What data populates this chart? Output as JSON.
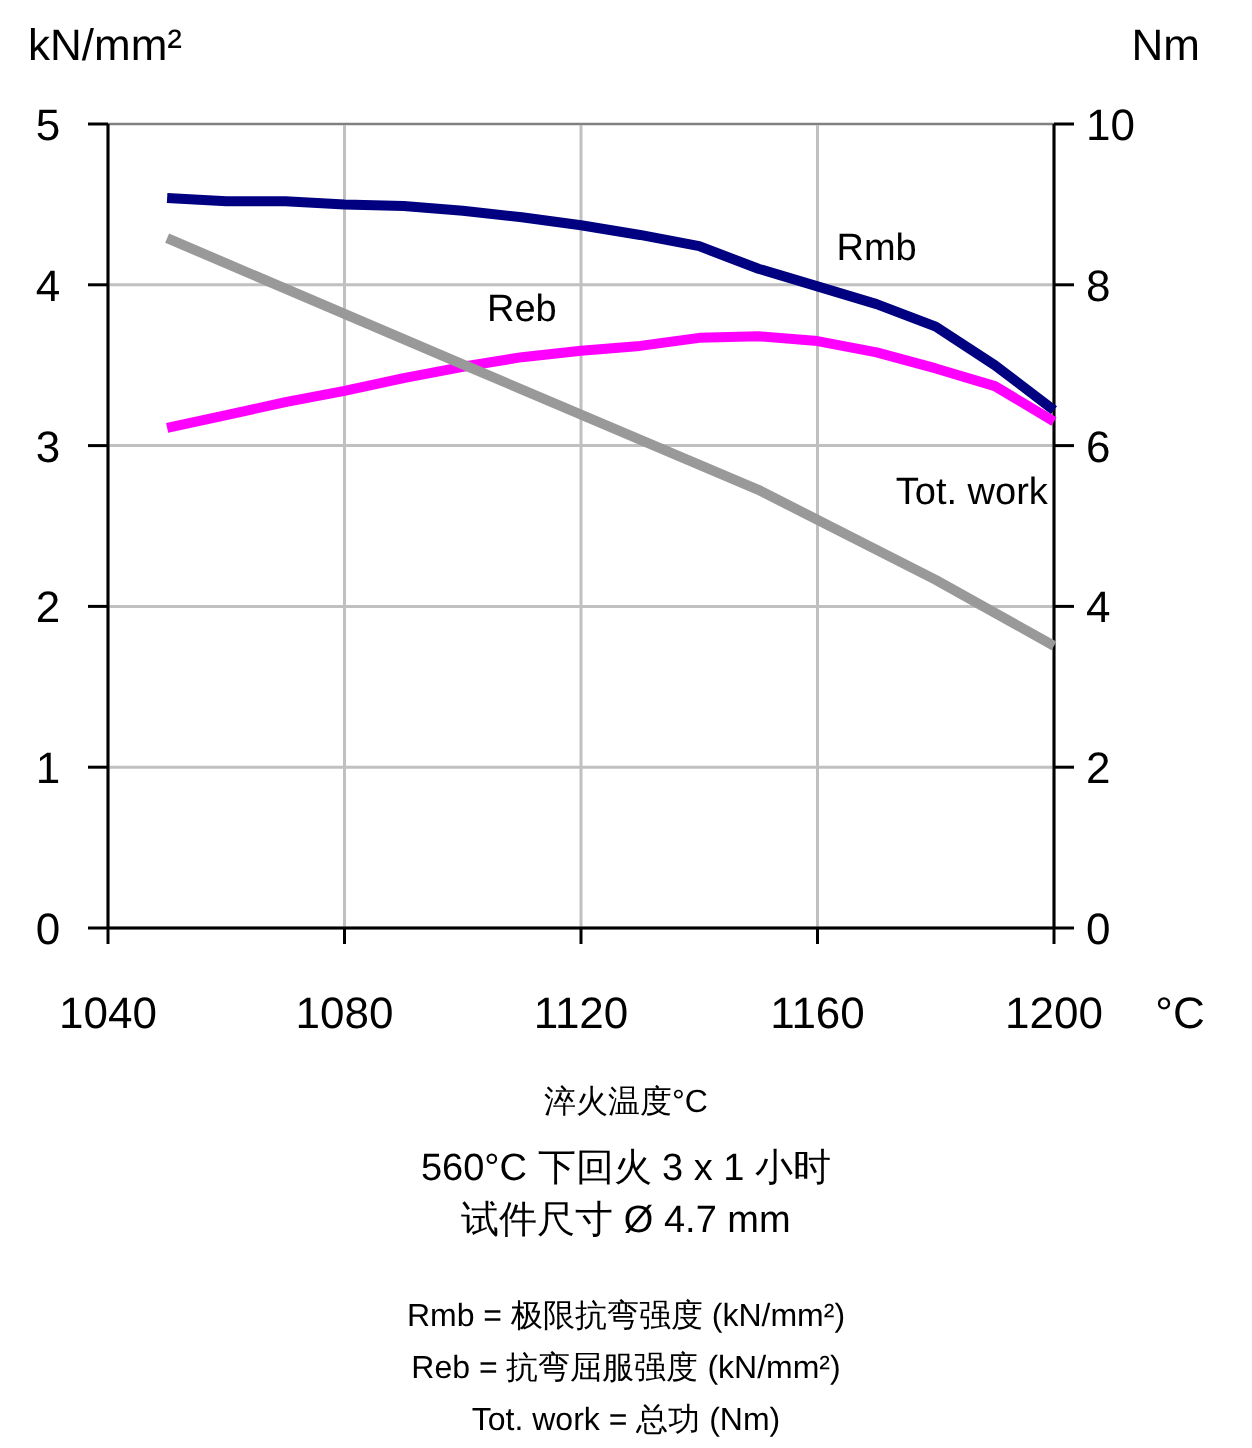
{
  "chart_data": {
    "type": "line",
    "xlabel": "°C",
    "ylabel": "kN/mm²",
    "y2label": "Nm",
    "x": [
      1050,
      1060,
      1070,
      1080,
      1090,
      1100,
      1110,
      1120,
      1130,
      1140,
      1150,
      1160,
      1170,
      1180,
      1190,
      1200
    ],
    "series": [
      {
        "name": "Rmb",
        "color": "#000080",
        "values": [
          4.54,
          4.52,
          4.52,
          4.5,
          4.49,
          4.46,
          4.42,
          4.37,
          4.31,
          4.24,
          4.1,
          3.99,
          3.88,
          3.74,
          3.5,
          3.22
        ]
      },
      {
        "name": "Reb",
        "color": "#ff00ff",
        "values": [
          3.11,
          3.19,
          3.27,
          3.34,
          3.42,
          3.49,
          3.55,
          3.59,
          3.62,
          3.67,
          3.68,
          3.65,
          3.58,
          3.48,
          3.37,
          3.15
        ]
      },
      {
        "name": "Tot. work",
        "color": "#999999",
        "axis": "y2",
        "x": [
          1050,
          1100,
          1150,
          1180,
          1200
        ],
        "values": [
          8.58,
          7.01,
          5.45,
          4.33,
          3.51
        ]
      }
    ],
    "xlim": [
      1040,
      1200
    ],
    "xticks": [
      1040,
      1080,
      1120,
      1160,
      1200
    ],
    "ylim": [
      0,
      5
    ],
    "yticks": [
      0,
      1,
      2,
      3,
      4,
      5
    ],
    "y2lim": [
      0,
      10
    ],
    "y2ticks": [
      0,
      2,
      4,
      6,
      8,
      10
    ],
    "grid": true,
    "legend": false,
    "marker": "none",
    "line_style": "solid",
    "annotations": [
      "淬火温度°C",
      "560°C 下回火 3 x 1 小时",
      "试件尺寸 Ø 4.7 mm",
      "Rmb = 极限抗弯强度 (kN/mm²)",
      "Reb =  抗弯屈服强度 (kN/mm²)",
      "Tot. work = 总功 (Nm)"
    ]
  }
}
